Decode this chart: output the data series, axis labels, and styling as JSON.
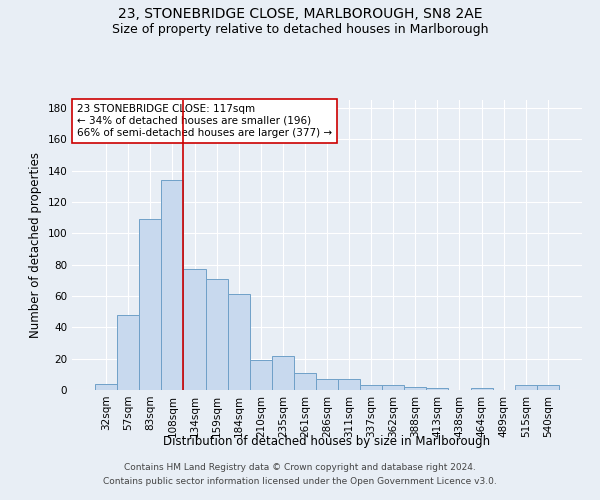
{
  "title": "23, STONEBRIDGE CLOSE, MARLBOROUGH, SN8 2AE",
  "subtitle": "Size of property relative to detached houses in Marlborough",
  "xlabel": "Distribution of detached houses by size in Marlborough",
  "ylabel": "Number of detached properties",
  "categories": [
    "32sqm",
    "57sqm",
    "83sqm",
    "108sqm",
    "134sqm",
    "159sqm",
    "184sqm",
    "210sqm",
    "235sqm",
    "261sqm",
    "286sqm",
    "311sqm",
    "337sqm",
    "362sqm",
    "388sqm",
    "413sqm",
    "438sqm",
    "464sqm",
    "489sqm",
    "515sqm",
    "540sqm"
  ],
  "values": [
    4,
    48,
    109,
    134,
    77,
    71,
    61,
    19,
    22,
    11,
    7,
    7,
    3,
    3,
    2,
    1,
    0,
    1,
    0,
    3,
    3
  ],
  "bar_color": "#c8d9ee",
  "bar_edge_color": "#6fa0c8",
  "vline_x": 3.5,
  "vline_color": "#cc0000",
  "annotation_line1": "23 STONEBRIDGE CLOSE: 117sqm",
  "annotation_line2": "← 34% of detached houses are smaller (196)",
  "annotation_line3": "66% of semi-detached houses are larger (377) →",
  "ylim": [
    0,
    185
  ],
  "yticks": [
    0,
    20,
    40,
    60,
    80,
    100,
    120,
    140,
    160,
    180
  ],
  "footer_line1": "Contains HM Land Registry data © Crown copyright and database right 2024.",
  "footer_line2": "Contains public sector information licensed under the Open Government Licence v3.0.",
  "bg_color": "#e8eef5",
  "plot_bg_color": "#e8eef5",
  "title_fontsize": 10,
  "subtitle_fontsize": 9,
  "label_fontsize": 8.5,
  "tick_fontsize": 7.5,
  "annotation_fontsize": 7.5,
  "footer_fontsize": 6.5
}
